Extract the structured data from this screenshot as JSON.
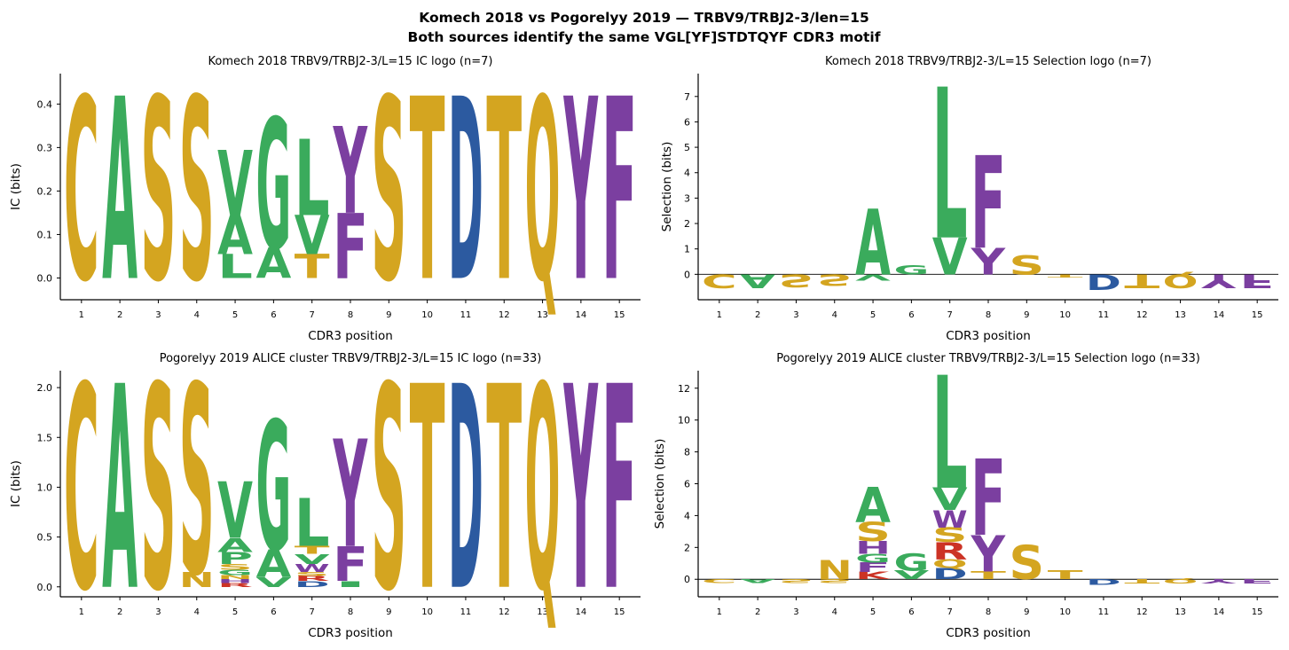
{
  "figure": {
    "title_line1": "Komech 2018 vs Pogorelyy 2019 — TRBV9/TRBJ2-3/len=15",
    "title_line2": "Both sources identify the same VGL[YF]STDTQYF CDR3 motif"
  },
  "colors": {
    "Y": "#7b3fa0",
    "F": "#7b3fa0",
    "W": "#7b3fa0",
    "A": "#3aab5c",
    "V": "#3aab5c",
    "G": "#3aab5c",
    "L": "#3aab5c",
    "P": "#3aab5c",
    "I": "#3aab5c",
    "M": "#3aab5c",
    "S": "#d4a520",
    "T": "#d4a520",
    "Q": "#d4a520",
    "N": "#d4a520",
    "C": "#d4a520",
    "D": "#2c5aa0",
    "E": "#2c5aa0",
    "R": "#cc3325",
    "K": "#cc3325",
    "H": "#7b3fa0"
  },
  "chart_data": [
    {
      "type": "logo",
      "title": "Komech 2018  TRBV9/TRBJ2-3/L=15  IC logo  (n=7)",
      "xlabel": "CDR3 position",
      "ylabel": "IC (bits)",
      "ylim": [
        -0.05,
        0.47
      ],
      "yticks": [
        0.0,
        0.1,
        0.2,
        0.3,
        0.4
      ],
      "ytick_labels": [
        "0.0",
        "0.1",
        "0.2",
        "0.3",
        "0.4"
      ],
      "positions": [
        "1",
        "2",
        "3",
        "4",
        "5",
        "6",
        "7",
        "8",
        "9",
        "10",
        "11",
        "12",
        "13",
        "14",
        "15"
      ],
      "stacks": [
        [
          [
            "C",
            0.42
          ]
        ],
        [
          [
            "A",
            0.42
          ]
        ],
        [
          [
            "S",
            0.42
          ]
        ],
        [
          [
            "S",
            0.42
          ]
        ],
        [
          [
            "L",
            0.055
          ],
          [
            "A",
            0.09
          ],
          [
            "V",
            0.15
          ]
        ],
        [
          [
            "A",
            0.07
          ],
          [
            "G",
            0.3
          ]
        ],
        [
          [
            "T",
            0.055
          ],
          [
            "V",
            0.09
          ],
          [
            "L",
            0.175
          ]
        ],
        [
          [
            "F",
            0.15
          ],
          [
            "Y",
            0.2
          ]
        ],
        [
          [
            "S",
            0.42
          ]
        ],
        [
          [
            "T",
            0.42
          ]
        ],
        [
          [
            "D",
            0.42
          ]
        ],
        [
          [
            "T",
            0.42
          ]
        ],
        [
          [
            "Q",
            0.42
          ]
        ],
        [
          [
            "Y",
            0.42
          ]
        ],
        [
          [
            "F",
            0.42
          ]
        ]
      ]
    },
    {
      "type": "logo",
      "title": "Komech 2018  TRBV9/TRBJ2-3/L=15  Selection logo  (n=7)",
      "xlabel": "CDR3 position",
      "ylabel": "Selection (bits)",
      "ylim": [
        -1.0,
        7.9
      ],
      "yticks": [
        0,
        1,
        2,
        3,
        4,
        5,
        6,
        7
      ],
      "ytick_labels": [
        "0",
        "1",
        "2",
        "3",
        "4",
        "5",
        "6",
        "7"
      ],
      "zero_line": true,
      "positions": [
        "1",
        "2",
        "3",
        "4",
        "5",
        "6",
        "7",
        "8",
        "9",
        "10",
        "11",
        "12",
        "13",
        "14",
        "15"
      ],
      "stacks": [
        [
          [
            "C",
            -0.55
          ]
        ],
        [
          [
            "A",
            -0.55
          ]
        ],
        [
          [
            "S",
            -0.5
          ]
        ],
        [
          [
            "S",
            -0.45
          ]
        ],
        [
          [
            "A",
            2.6
          ],
          [
            "V",
            -0.25
          ]
        ],
        [
          [
            "G",
            0.35
          ]
        ],
        [
          [
            "V",
            1.45
          ],
          [
            "L",
            5.95
          ]
        ],
        [
          [
            "Y",
            1.05
          ],
          [
            "F",
            3.65
          ]
        ],
        [
          [
            "S",
            0.75
          ]
        ],
        [
          [
            "T",
            -0.1
          ]
        ],
        [
          [
            "D",
            -0.6
          ]
        ],
        [
          [
            "T",
            -0.55
          ]
        ],
        [
          [
            "Q",
            -0.55
          ]
        ],
        [
          [
            "Y",
            -0.55
          ]
        ],
        [
          [
            "F",
            -0.55
          ]
        ]
      ]
    },
    {
      "type": "logo",
      "title": "Pogorelyy 2019 ALICE cluster  TRBV9/TRBJ2-3/L=15  IC logo  (n=33)",
      "xlabel": "CDR3 position",
      "ylabel": "IC (bits)",
      "ylim": [
        -0.1,
        2.17
      ],
      "yticks": [
        0.0,
        0.5,
        1.0,
        1.5,
        2.0
      ],
      "ytick_labels": [
        "0.0",
        "0.5",
        "1.0",
        "1.5",
        "2.0"
      ],
      "positions": [
        "1",
        "2",
        "3",
        "4",
        "5",
        "6",
        "7",
        "8",
        "9",
        "10",
        "11",
        "12",
        "13",
        "14",
        "15"
      ],
      "stacks": [
        [
          [
            "C",
            2.05
          ]
        ],
        [
          [
            "A",
            2.05
          ]
        ],
        [
          [
            "S",
            2.05
          ]
        ],
        [
          [
            "N",
            0.15
          ],
          [
            "S",
            1.9
          ]
        ],
        [
          [
            "R",
            0.04
          ],
          [
            "H",
            0.04
          ],
          [
            "N",
            0.04
          ],
          [
            "G",
            0.05
          ],
          [
            "S",
            0.06
          ],
          [
            "P",
            0.12
          ],
          [
            "A",
            0.14
          ],
          [
            "V",
            0.57
          ]
        ],
        [
          [
            "V",
            0.1
          ],
          [
            "A",
            0.28
          ],
          [
            "G",
            1.3
          ]
        ],
        [
          [
            "D",
            0.06
          ],
          [
            "R",
            0.05
          ],
          [
            "S",
            0.04
          ],
          [
            "W",
            0.08
          ],
          [
            "V",
            0.1
          ],
          [
            "T",
            0.08
          ],
          [
            "L",
            0.48
          ]
        ],
        [
          [
            "I",
            0.06
          ],
          [
            "F",
            0.35
          ],
          [
            "Y",
            1.08
          ]
        ],
        [
          [
            "S",
            2.05
          ]
        ],
        [
          [
            "T",
            2.05
          ]
        ],
        [
          [
            "D",
            2.05
          ]
        ],
        [
          [
            "T",
            2.05
          ]
        ],
        [
          [
            "Q",
            2.05
          ]
        ],
        [
          [
            "Y",
            2.05
          ]
        ],
        [
          [
            "F",
            2.05
          ]
        ]
      ]
    },
    {
      "type": "logo",
      "title": "Pogorelyy 2019 ALICE cluster  TRBV9/TRBJ2-3/L=15  Selection logo  (n=33)",
      "xlabel": "CDR3 position",
      "ylabel": "Selection (bits)",
      "ylim": [
        -1.1,
        13.1
      ],
      "yticks": [
        0,
        2,
        4,
        6,
        8,
        10,
        12
      ],
      "ytick_labels": [
        "0",
        "2",
        "4",
        "6",
        "8",
        "10",
        "12"
      ],
      "zero_line": true,
      "positions": [
        "1",
        "2",
        "3",
        "4",
        "5",
        "6",
        "7",
        "8",
        "9",
        "10",
        "11",
        "12",
        "13",
        "14",
        "15"
      ],
      "stacks": [
        [
          [
            "C",
            -0.25
          ]
        ],
        [
          [
            "A",
            -0.25
          ]
        ],
        [
          [
            "S",
            -0.25
          ]
        ],
        [
          [
            "S",
            -0.25
          ],
          [
            "N",
            1.2
          ]
        ],
        [
          [
            "K",
            0.45
          ],
          [
            "F",
            0.6
          ],
          [
            "G",
            0.55
          ],
          [
            "H",
            0.8
          ],
          [
            "S",
            1.2
          ],
          [
            "A",
            2.2
          ]
        ],
        [
          [
            "V",
            0.55
          ],
          [
            "G",
            1.1
          ]
        ],
        [
          [
            "D",
            0.7
          ],
          [
            "Q",
            0.55
          ],
          [
            "R",
            1.1
          ],
          [
            "S",
            0.9
          ],
          [
            "W",
            1.1
          ],
          [
            "V",
            1.4
          ],
          [
            "L",
            7.1
          ]
        ],
        [
          [
            "T",
            0.5
          ],
          [
            "Y",
            2.3
          ],
          [
            "F",
            4.8
          ]
        ],
        [
          [
            "S",
            2.15
          ]
        ],
        [
          [
            "T",
            0.55
          ]
        ],
        [
          [
            "D",
            -0.35
          ]
        ],
        [
          [
            "T",
            -0.3
          ]
        ],
        [
          [
            "Q",
            -0.3
          ]
        ],
        [
          [
            "Y",
            -0.3
          ]
        ],
        [
          [
            "F",
            -0.3
          ]
        ]
      ]
    }
  ]
}
